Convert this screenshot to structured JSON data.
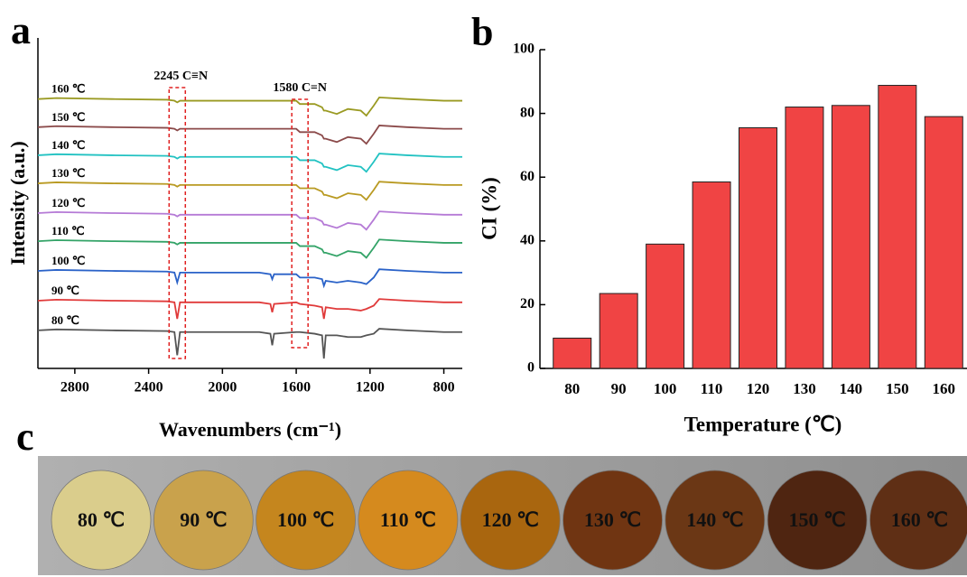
{
  "panels": [
    "a",
    "b",
    "c"
  ],
  "chart_data": [
    {
      "type": "line",
      "xlabel": "Wavenumbers (cm⁻¹)",
      "ylabel": "Intensity (a.u.)",
      "xlim": [
        3000,
        700
      ],
      "xticks": [
        2800,
        2400,
        2000,
        1600,
        1200,
        800
      ],
      "ylim": [
        0,
        100
      ],
      "annotations": [
        {
          "text": "2245 C≡N",
          "x": 2245
        },
        {
          "text": "1580 C=N",
          "x": 1580
        }
      ],
      "x": [
        3000,
        2900,
        2600,
        2300,
        2260,
        2245,
        2230,
        2000,
        1800,
        1740,
        1730,
        1720,
        1600,
        1580,
        1500,
        1460,
        1450,
        1440,
        1380,
        1320,
        1250,
        1220,
        1180,
        1150,
        1000,
        800,
        700
      ],
      "series": [
        {
          "name": "80 ℃",
          "color": "#555555",
          "values": [
            11.5,
            11.8,
            11.5,
            11.3,
            11,
            4,
            11,
            11,
            11,
            10.5,
            7,
            10.5,
            11,
            11,
            10.5,
            10,
            3,
            10,
            10,
            9.5,
            9.5,
            10,
            10.5,
            12,
            11.5,
            11,
            11
          ]
        },
        {
          "name": "90 ℃",
          "color": "#e03a3a",
          "values": [
            20.5,
            20.8,
            20.5,
            20.3,
            20,
            15,
            20,
            20,
            20,
            19.5,
            17,
            19.5,
            20,
            19.5,
            19,
            18.5,
            15,
            18.5,
            18,
            18,
            17.5,
            18,
            19,
            21,
            20.5,
            20,
            20
          ]
        },
        {
          "name": "100 ℃",
          "color": "#2a62c8",
          "values": [
            29.5,
            29.8,
            29.5,
            29.3,
            29,
            26,
            29,
            29,
            29,
            28.5,
            27,
            28.5,
            28.5,
            27.5,
            27.5,
            27,
            25,
            26.5,
            26,
            26.5,
            26,
            25.5,
            27.5,
            30,
            29.5,
            29,
            29
          ]
        },
        {
          "name": "110 ℃",
          "color": "#33a367",
          "values": [
            38.5,
            38.8,
            38.5,
            38.3,
            38,
            37.5,
            38,
            38,
            38,
            38,
            38,
            38,
            38,
            37,
            37,
            36,
            35,
            35,
            34,
            35.5,
            35,
            33.5,
            36.5,
            39,
            38.5,
            38,
            38
          ]
        },
        {
          "name": "120 ℃",
          "color": "#b57ad6",
          "values": [
            47,
            47.3,
            47,
            46.8,
            46.5,
            46,
            46.5,
            46.5,
            46.5,
            46.5,
            46.5,
            46.5,
            46.5,
            45.5,
            45.5,
            44.5,
            43.5,
            43.5,
            42.5,
            44,
            43.5,
            42,
            45,
            47.5,
            47,
            46.5,
            46.5
          ]
        },
        {
          "name": "130 ℃",
          "color": "#b99a22",
          "values": [
            56,
            56.3,
            56,
            55.8,
            55.5,
            55,
            55.5,
            55.5,
            55.5,
            55.5,
            55.5,
            55.5,
            55.5,
            54.5,
            54.5,
            53.5,
            52.5,
            52.5,
            51.5,
            53,
            52.5,
            51,
            54,
            56.5,
            56,
            55.5,
            55.5
          ]
        },
        {
          "name": "140 ℃",
          "color": "#22c2c2",
          "values": [
            64.5,
            64.8,
            64.5,
            64.3,
            64,
            63.5,
            64,
            64,
            64,
            64,
            64,
            64,
            64,
            63,
            63,
            62,
            61,
            61,
            60,
            61.5,
            61,
            59.5,
            62.5,
            65,
            64.5,
            64,
            64
          ]
        },
        {
          "name": "150 ℃",
          "color": "#8b4a4a",
          "values": [
            73,
            73.3,
            73,
            72.8,
            72.5,
            72,
            72.5,
            72.5,
            72.5,
            72.5,
            72.5,
            72.5,
            72.5,
            71.5,
            71.5,
            70.5,
            69.5,
            69.5,
            68.5,
            70,
            69.5,
            68,
            71,
            73.5,
            73,
            72.5,
            72.5
          ]
        },
        {
          "name": "160 ℃",
          "color": "#9a9a22",
          "values": [
            81.5,
            81.8,
            81.5,
            81.3,
            81,
            80.5,
            81,
            81,
            81,
            81,
            81,
            81,
            81,
            80,
            80,
            79,
            78,
            78,
            77,
            78.5,
            78,
            76.5,
            79.5,
            82,
            81.5,
            81,
            81
          ]
        }
      ]
    },
    {
      "type": "bar",
      "xlabel": "Temperature (℃)",
      "ylabel": "CI (%)",
      "categories": [
        "80",
        "90",
        "100",
        "110",
        "120",
        "130",
        "140",
        "150",
        "160"
      ],
      "values": [
        9.5,
        23.5,
        39,
        58.5,
        75.5,
        82,
        82.5,
        88.8,
        79
      ],
      "color": "#f04444",
      "ylim": [
        0,
        100
      ],
      "yticks": [
        0,
        20,
        40,
        60,
        80,
        100
      ]
    }
  ],
  "photo": {
    "labels": [
      "80 ℃",
      "90 ℃",
      "100 ℃",
      "110 ℃",
      "120 ℃",
      "130 ℃",
      "140 ℃",
      "150 ℃",
      "160 ℃"
    ],
    "colors": [
      "#dacd8c",
      "#c9a24c",
      "#c5861e",
      "#d58a1e",
      "#a9660f",
      "#703512",
      "#6b3715",
      "#4f2511",
      "#5f2f15"
    ]
  }
}
